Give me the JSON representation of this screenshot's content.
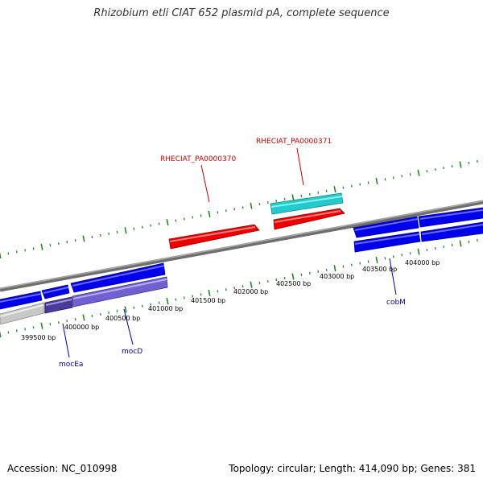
{
  "title": "Rhizobium etli CIAT 652 plasmid pA, complete sequence",
  "accession": "Accession: NC_010998",
  "summary": "Topology: circular; Length: 414,090 bp; Genes: 381",
  "colors": {
    "backbone": "#808080",
    "tick": "#1e8c1e",
    "gene_blue": "#0000ee",
    "gene_red": "#ee0000",
    "gene_cyan": "#22cccc",
    "gene_purple": "#7060d0",
    "gene_gray": "#c8c8c8",
    "label_red": "#cc0000",
    "label_blue": "#0000aa"
  },
  "position_labels": [
    "399500 bp",
    "400000 bp",
    "400500 bp",
    "401000 bp",
    "401500 bp",
    "402000 bp",
    "402500 bp",
    "403000 bp",
    "403500 bp",
    "404000 bp"
  ],
  "gene_labels": {
    "rheciat_pa0000370": "RHECIAT_PA0000370",
    "rheciat_pa0000371": "RHECIAT_PA0000371",
    "moce": "mocEa",
    "mocd": "mocD",
    "cobm": "cobM"
  }
}
